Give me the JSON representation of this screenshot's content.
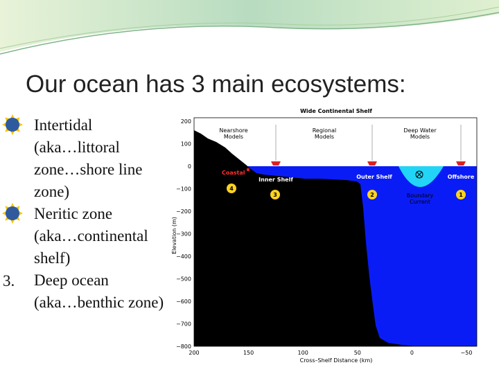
{
  "title": "Our ocean has 3 main ecosystems:",
  "list": [
    {
      "lines": [
        "Intertidal",
        "(aka…littoral",
        "zone…shore line",
        "zone)"
      ]
    },
    {
      "lines": [
        "Neritic zone",
        "(aka…continental",
        "shelf)"
      ]
    },
    {
      "number": "3.",
      "lines": [
        "Deep ocean",
        "(aka…benthic zone)"
      ]
    }
  ],
  "figure": {
    "title": "Wide Continental Shelf",
    "y_label": "Elevation (m)",
    "x_label": "Cross–Shelf Distance (km)",
    "y_ticks": [
      "200",
      "100",
      "0",
      "−100",
      "−200",
      "−300",
      "−400",
      "−500",
      "−600",
      "−700",
      "−800"
    ],
    "x_ticks": [
      "200",
      "150",
      "100",
      "50",
      "0",
      "−50"
    ],
    "zones": [
      [
        "Nearshore",
        "Models"
      ],
      [
        "Regional",
        "Models"
      ],
      [
        "Deep Water",
        "Models"
      ]
    ],
    "sites": [
      "Coastal",
      "Inner Shelf",
      "Outer Shelf",
      "Offshore"
    ],
    "site_numbers": [
      "4",
      "3",
      "2",
      "1"
    ],
    "current": [
      "Boundary",
      "Current"
    ]
  }
}
